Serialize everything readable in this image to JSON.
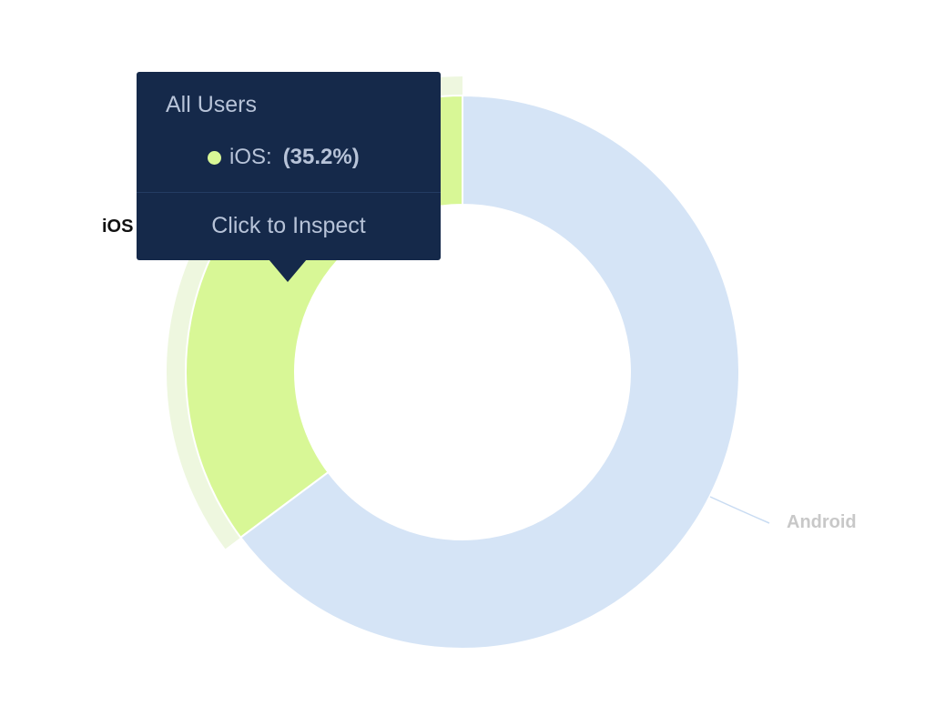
{
  "chart_data": {
    "type": "pie",
    "title": "",
    "slices": [
      {
        "label": "iOS",
        "value": 35.2,
        "color": "#d8f796",
        "highlighted": true
      },
      {
        "label": "Android",
        "value": 64.8,
        "color": "#d5e4f6",
        "highlighted": false
      }
    ],
    "label_colors": {
      "iOS": "#111111",
      "Android": "#c8c8c8"
    },
    "leader_line_color": "#c8dbf2",
    "hover_halo_color": "#eef7df",
    "legend": "none"
  },
  "tooltip": {
    "title": "All Users",
    "series_label": "iOS",
    "colon": ":",
    "value": "(35.2%)",
    "dot_color": "#d8f796",
    "action": "Click to Inspect",
    "background": "#15294a"
  }
}
